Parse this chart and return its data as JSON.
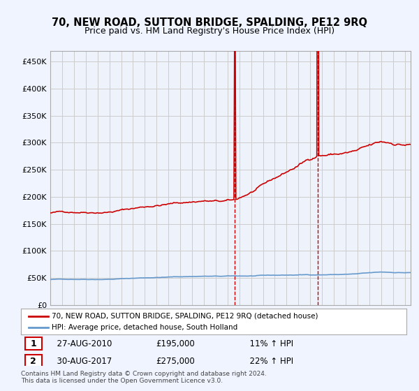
{
  "title": "70, NEW ROAD, SUTTON BRIDGE, SPALDING, PE12 9RQ",
  "subtitle": "Price paid vs. HM Land Registry's House Price Index (HPI)",
  "ylabel": "",
  "yticks": [
    0,
    50000,
    100000,
    150000,
    200000,
    250000,
    300000,
    350000,
    400000,
    450000
  ],
  "ytick_labels": [
    "£0",
    "£50K",
    "£100K",
    "£150K",
    "£200K",
    "£250K",
    "£300K",
    "£350K",
    "£400K",
    "£450K"
  ],
  "ylim": [
    0,
    470000
  ],
  "sale1_date": "27-AUG-2010",
  "sale1_price": 195000,
  "sale1_pct": "11%",
  "sale2_date": "30-AUG-2017",
  "sale2_price": 275000,
  "sale2_pct": "22%",
  "legend_line1": "70, NEW ROAD, SUTTON BRIDGE, SPALDING, PE12 9RQ (detached house)",
  "legend_line2": "HPI: Average price, detached house, South Holland",
  "footer": "Contains HM Land Registry data © Crown copyright and database right 2024.\nThis data is licensed under the Open Government Licence v3.0.",
  "line_color_red": "#cc0000",
  "line_color_blue": "#6699cc",
  "background_color": "#f0f4ff",
  "plot_bg": "#ffffff",
  "vline_color": "#cc0000",
  "marker_color_red": "#cc0000",
  "marker_color_blue": "#6699cc"
}
